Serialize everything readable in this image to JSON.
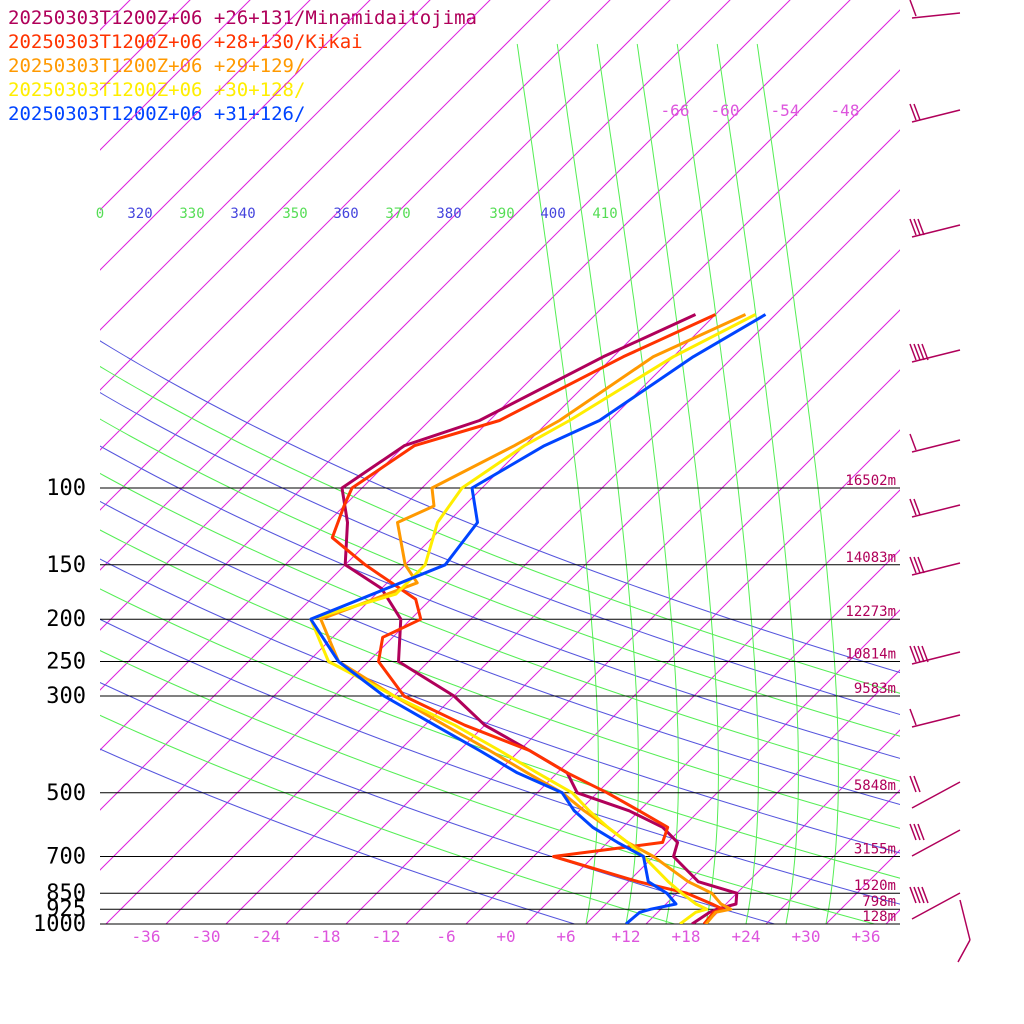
{
  "chart_data": {
    "type": "line",
    "diagram": "Skew-T log-P",
    "legend_entries": [
      {
        "text": "20250303T1200Z+06 +26+131/Minamidaitojima",
        "color": "#b0005a"
      },
      {
        "text": "20250303T1200Z+06 +28+130/Kikai",
        "color": "#ff3300"
      },
      {
        "text": "20250303T1200Z+06 +29+129/",
        "color": "#ff9900"
      },
      {
        "text": "20250303T1200Z+06 +30+128/",
        "color": "#ffee00"
      },
      {
        "text": "20250303T1200Z+06 +31+126/",
        "color": "#0044ff"
      }
    ],
    "pressure_levels": [
      {
        "p": 100,
        "label": "100",
        "height": "16502m"
      },
      {
        "p": 150,
        "label": "150",
        "height": "14083m"
      },
      {
        "p": 200,
        "label": "200",
        "height": "12273m"
      },
      {
        "p": 250,
        "label": "250",
        "height": "10814m"
      },
      {
        "p": 300,
        "label": "300",
        "height": "9583m"
      },
      {
        "p": 500,
        "label": "500",
        "height": "5848m"
      },
      {
        "p": 700,
        "label": "700",
        "height": "3155m"
      },
      {
        "p": 850,
        "label": "850",
        "height": "1520m"
      },
      {
        "p": 925,
        "label": "925",
        "height": "798m"
      },
      {
        "p": 1000,
        "label": "1000",
        "height": "128m"
      }
    ],
    "temperature_ticks": [
      {
        "t": -36,
        "label": "-36"
      },
      {
        "t": -30,
        "label": "-30"
      },
      {
        "t": -24,
        "label": "-24"
      },
      {
        "t": -18,
        "label": "-18"
      },
      {
        "t": -12,
        "label": "-12"
      },
      {
        "t": -6,
        "label": "-6"
      },
      {
        "t": 0,
        "label": "+0"
      },
      {
        "t": 6,
        "label": "+6"
      },
      {
        "t": 12,
        "label": "+12"
      },
      {
        "t": 18,
        "label": "+18"
      },
      {
        "t": 24,
        "label": "+24"
      },
      {
        "t": 30,
        "label": "+30"
      },
      {
        "t": 36,
        "label": "+36"
      }
    ],
    "upper_temperature_labels": [
      "-66",
      "-60",
      "-54",
      "-48"
    ],
    "theta_labels": [
      {
        "text": "0",
        "color": "#55dd55"
      },
      {
        "text": "320",
        "color": "#4444dd"
      },
      {
        "text": "330",
        "color": "#55dd55"
      },
      {
        "text": "340",
        "color": "#4444dd"
      },
      {
        "text": "350",
        "color": "#55dd55"
      },
      {
        "text": "360",
        "color": "#4444dd"
      },
      {
        "text": "370",
        "color": "#55dd55"
      },
      {
        "text": "380",
        "color": "#4444dd"
      },
      {
        "text": "390",
        "color": "#55dd55"
      },
      {
        "text": "400",
        "color": "#4444dd"
      },
      {
        "text": "410",
        "color": "#55dd55"
      }
    ],
    "series": [
      {
        "name": "20250303T1200Z+06 +26+131/Minamidaitojima",
        "color": "#b0005a",
        "points": [
          [
            1000,
            18.6
          ],
          [
            940,
            19.2
          ],
          [
            925,
            19.6
          ],
          [
            900,
            21.0
          ],
          [
            850,
            20.0
          ],
          [
            800,
            15.0
          ],
          [
            700,
            10.0
          ],
          [
            650,
            9.0
          ],
          [
            600,
            6.0
          ],
          [
            550,
            1.0
          ],
          [
            500,
            -6.0
          ],
          [
            450,
            -9.0
          ],
          [
            400,
            -15.0
          ],
          [
            350,
            -22.0
          ],
          [
            300,
            -28.0
          ],
          [
            250,
            -37.0
          ],
          [
            200,
            -41.0
          ],
          [
            170,
            -46.0
          ],
          [
            150,
            -52.0
          ],
          [
            120,
            -56.0
          ],
          [
            100,
            -60.0
          ],
          [
            80,
            -58.0
          ],
          [
            70,
            -53.0
          ],
          [
            50,
            -47.0
          ],
          [
            40,
            -42.0
          ]
        ]
      },
      {
        "name": "20250303T1200Z+06 +28+130/Kikai",
        "color": "#ff3300",
        "points": [
          [
            1000,
            19.8
          ],
          [
            940,
            19.6
          ],
          [
            925,
            20.2
          ],
          [
            900,
            18.6
          ],
          [
            850,
            15.0
          ],
          [
            800,
            9.0
          ],
          [
            700,
            -2.0
          ],
          [
            650,
            7.5
          ],
          [
            600,
            6.5
          ],
          [
            550,
            2.0
          ],
          [
            500,
            -3.0
          ],
          [
            450,
            -9.0
          ],
          [
            400,
            -15.0
          ],
          [
            350,
            -24.0
          ],
          [
            300,
            -33.0
          ],
          [
            250,
            -39.0
          ],
          [
            220,
            -41.0
          ],
          [
            200,
            -39.0
          ],
          [
            180,
            -41.5
          ],
          [
            150,
            -50.0
          ],
          [
            130,
            -56.0
          ],
          [
            110,
            -58.0
          ],
          [
            100,
            -59.0
          ],
          [
            80,
            -57.0
          ],
          [
            70,
            -51.0
          ],
          [
            50,
            -45.0
          ],
          [
            40,
            -40.0
          ]
        ]
      },
      {
        "name": "20250303T1200Z+06 +29+129/",
        "color": "#ff9900",
        "points": [
          [
            1000,
            20.0
          ],
          [
            940,
            19.8
          ],
          [
            925,
            21.0
          ],
          [
            900,
            19.5
          ],
          [
            850,
            17.5
          ],
          [
            800,
            14.0
          ],
          [
            700,
            8.0
          ],
          [
            650,
            4.0
          ],
          [
            600,
            0.5
          ],
          [
            550,
            -3.5
          ],
          [
            500,
            -7.5
          ],
          [
            450,
            -13.0
          ],
          [
            400,
            -19.0
          ],
          [
            350,
            -26.0
          ],
          [
            300,
            -34.0
          ],
          [
            250,
            -43.0
          ],
          [
            200,
            -49.0
          ],
          [
            165,
            -43.0
          ],
          [
            150,
            -46.0
          ],
          [
            120,
            -51.0
          ],
          [
            110,
            -49.0
          ],
          [
            100,
            -51.0
          ],
          [
            80,
            -47.0
          ],
          [
            70,
            -45.0
          ],
          [
            50,
            -42.0
          ],
          [
            40,
            -37.0
          ]
        ]
      },
      {
        "name": "20250303T1200Z+06 +30+128/",
        "color": "#ffee00",
        "points": [
          [
            1000,
            17.4
          ],
          [
            940,
            17.8
          ],
          [
            925,
            18.6
          ],
          [
            900,
            17.0
          ],
          [
            850,
            14.5
          ],
          [
            800,
            12.0
          ],
          [
            700,
            7.0
          ],
          [
            650,
            4.0
          ],
          [
            600,
            0.5
          ],
          [
            550,
            -3.0
          ],
          [
            500,
            -6.5
          ],
          [
            450,
            -12.0
          ],
          [
            400,
            -18.0
          ],
          [
            350,
            -25.0
          ],
          [
            300,
            -34.0
          ],
          [
            250,
            -44.0
          ],
          [
            200,
            -50.0
          ],
          [
            175,
            -44.0
          ],
          [
            150,
            -44.0
          ],
          [
            120,
            -47.0
          ],
          [
            100,
            -48.0
          ],
          [
            80,
            -46.0
          ],
          [
            70,
            -44.0
          ],
          [
            50,
            -40.0
          ],
          [
            40,
            -36.0
          ]
        ]
      },
      {
        "name": "20250303T1200Z+06 +31+126/",
        "color": "#0044ff",
        "points": [
          [
            1000,
            12.0
          ],
          [
            940,
            12.2
          ],
          [
            925,
            13.0
          ],
          [
            900,
            15.0
          ],
          [
            850,
            13.0
          ],
          [
            800,
            10.0
          ],
          [
            700,
            7.0
          ],
          [
            650,
            3.0
          ],
          [
            600,
            -1.0
          ],
          [
            550,
            -4.5
          ],
          [
            500,
            -7.5
          ],
          [
            450,
            -14.0
          ],
          [
            400,
            -20.0
          ],
          [
            350,
            -27.0
          ],
          [
            300,
            -35.0
          ],
          [
            250,
            -43.0
          ],
          [
            200,
            -50.0
          ],
          [
            150,
            -42.0
          ],
          [
            120,
            -43.0
          ],
          [
            100,
            -47.0
          ],
          [
            80,
            -44.0
          ],
          [
            70,
            -41.0
          ],
          [
            50,
            -38.0
          ],
          [
            40,
            -35.0
          ]
        ]
      }
    ]
  }
}
